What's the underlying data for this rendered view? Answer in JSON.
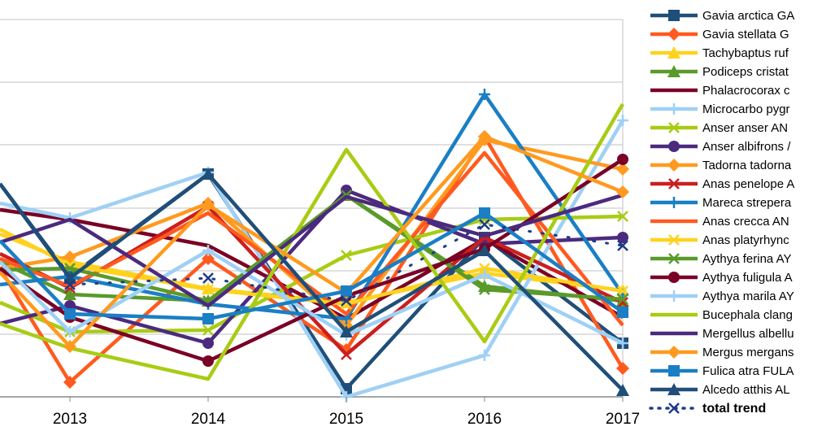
{
  "chart_data": {
    "type": "line",
    "x": [
      "2013",
      "2014",
      "2015",
      "2016",
      "2017"
    ],
    "grid": true,
    "legend_position": "right",
    "series": [
      {
        "name": "Gavia arctica GA",
        "color": "#1f4e79",
        "marker": "square",
        "values": [
          null,
          null,
          null,
          null,
          null
        ]
      },
      {
        "name": "Gavia stellata G",
        "color": "#ff5a1f",
        "marker": "diamond",
        "values": [
          null,
          null,
          null,
          null,
          null
        ]
      },
      {
        "name": "Tachybaptus ruf",
        "color": "#ffd21f",
        "marker": "triangle",
        "values": [
          null,
          null,
          null,
          null,
          null
        ]
      },
      {
        "name": "Podiceps cristat",
        "color": "#5a9a2a",
        "marker": "triangle",
        "values": [
          null,
          null,
          null,
          null,
          null
        ]
      },
      {
        "name": "Phalacrocorax c",
        "color": "#7a0026",
        "marker": "none",
        "values": [
          null,
          null,
          null,
          null,
          null
        ]
      },
      {
        "name": "Microcarbo pygr",
        "color": "#9fd0f5",
        "marker": "plus",
        "values": [
          null,
          null,
          null,
          null,
          null
        ]
      },
      {
        "name": "Anser anser AN",
        "color": "#a8cc14",
        "marker": "x",
        "values": [
          null,
          null,
          null,
          null,
          null
        ]
      },
      {
        "name": "Anser albifrons /",
        "color": "#4b2a7e",
        "marker": "circle",
        "values": [
          null,
          null,
          null,
          null,
          null
        ]
      },
      {
        "name": "Tadorna tadorna",
        "color": "#ff9a1f",
        "marker": "diamond",
        "values": [
          null,
          null,
          null,
          null,
          null
        ]
      },
      {
        "name": "Anas penelope A",
        "color": "#cc1e1e",
        "marker": "x",
        "values": [
          null,
          null,
          null,
          null,
          null
        ]
      },
      {
        "name": "Mareca strepera",
        "color": "#1a7fc4",
        "marker": "plus",
        "values": [
          null,
          null,
          null,
          null,
          null
        ]
      },
      {
        "name": "Anas crecca AN",
        "color": "#ff5a1f",
        "marker": "none",
        "values": [
          null,
          null,
          null,
          null,
          null
        ]
      },
      {
        "name": "Anas platyrhync",
        "color": "#ffd21f",
        "marker": "x",
        "values": [
          null,
          null,
          null,
          null,
          null
        ]
      },
      {
        "name": "Aythya ferina AY",
        "color": "#5a9a2a",
        "marker": "x",
        "values": [
          null,
          null,
          null,
          null,
          null
        ]
      },
      {
        "name": "Aythya fuligula A",
        "color": "#7a0026",
        "marker": "circle",
        "values": [
          null,
          null,
          null,
          null,
          null
        ]
      },
      {
        "name": "Aythya marila AY",
        "color": "#9fd0f5",
        "marker": "plus",
        "values": [
          null,
          null,
          null,
          null,
          null
        ]
      },
      {
        "name": "Bucephala clang",
        "color": "#a8cc14",
        "marker": "none",
        "values": [
          null,
          null,
          null,
          null,
          null
        ]
      },
      {
        "name": "Mergellus albellu",
        "color": "#4b2a7e",
        "marker": "none",
        "values": [
          null,
          null,
          null,
          null,
          null
        ]
      },
      {
        "name": "Mergus mergans",
        "color": "#ff9a1f",
        "marker": "diamond",
        "values": [
          null,
          null,
          null,
          null,
          null
        ]
      },
      {
        "name": "Fulica atra FULA",
        "color": "#1a7fc4",
        "marker": "square",
        "values": [
          null,
          null,
          null,
          null,
          null
        ]
      },
      {
        "name": "Alcedo atthis AL",
        "color": "#1f4e79",
        "marker": "triangle",
        "values": [
          null,
          null,
          null,
          null,
          null
        ]
      },
      {
        "name": "total trend",
        "color": "#1f3c88",
        "marker": "x",
        "dotted": true,
        "bold": true,
        "values": [
          null,
          null,
          null,
          null,
          null
        ]
      }
    ]
  }
}
